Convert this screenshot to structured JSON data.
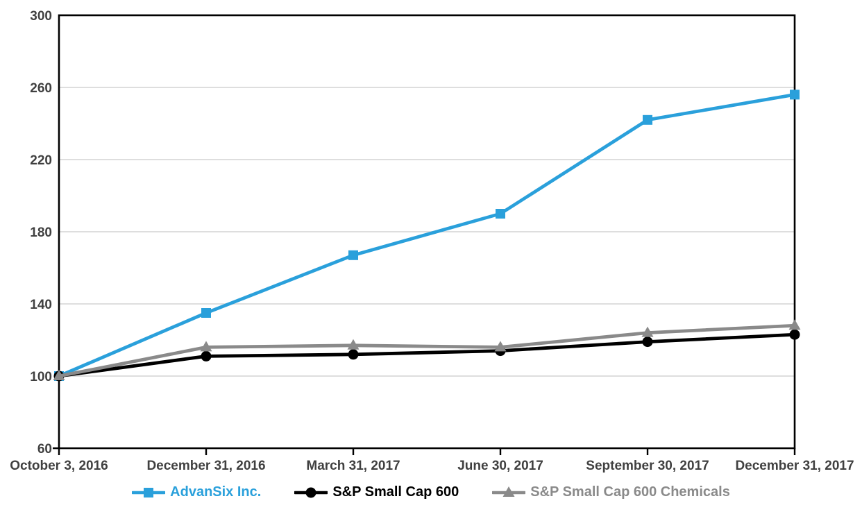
{
  "chart_data": {
    "type": "line",
    "title": "",
    "xlabel": "",
    "ylabel": "",
    "categories": [
      "October 3, 2016",
      "December 31, 2016",
      "March 31, 2017",
      "June 30, 2017",
      "September 30, 2017",
      "December 31, 2017"
    ],
    "series": [
      {
        "name": "AdvanSix Inc.",
        "values": [
          100,
          135,
          167,
          190,
          242,
          256
        ],
        "color": "#2AA0DB",
        "marker": "square"
      },
      {
        "name": "S&P Small Cap 600",
        "values": [
          100,
          111,
          112,
          114,
          119,
          123
        ],
        "color": "#000000",
        "marker": "circle"
      },
      {
        "name": "S&P Small Cap 600 Chemicals",
        "values": [
          100,
          116,
          117,
          116,
          124,
          128
        ],
        "color": "#8A8A8A",
        "marker": "triangle"
      }
    ],
    "ylim": [
      60,
      300
    ],
    "ytick_step": 40,
    "ytick_labels": [
      "60",
      "100",
      "140",
      "180",
      "220",
      "260",
      "300"
    ],
    "grid": "horizontal-only",
    "legend_position": "bottom",
    "colors": {
      "gridline": "#D9D9D9",
      "axis_border": "#000000",
      "tick_label": "#404040",
      "background": "#FFFFFF"
    }
  }
}
